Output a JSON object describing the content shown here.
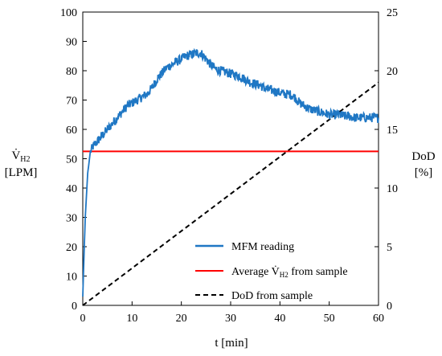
{
  "chart_data": {
    "type": "line",
    "xlabel": "t [min]",
    "ylabel_left": {
      "symbol": "V̇",
      "subscript": "H2",
      "unit": "[LPM]"
    },
    "ylabel_right": {
      "name": "DoD",
      "unit": "[%]"
    },
    "xlim": [
      0,
      60
    ],
    "ylim_left": [
      0,
      100
    ],
    "ylim_right": [
      0,
      25
    ],
    "x_ticks": [
      "0",
      "10",
      "20",
      "30",
      "40",
      "50",
      "60"
    ],
    "y_left_ticks": [
      "0",
      "10",
      "20",
      "30",
      "40",
      "50",
      "60",
      "70",
      "80",
      "90",
      "100"
    ],
    "y_right_ticks": [
      "0",
      "5",
      "10",
      "15",
      "20",
      "25"
    ],
    "grid": false,
    "legend_position": "bottom-right",
    "series": [
      {
        "name": "MFM reading",
        "axis": "left",
        "color": "#1f77c4",
        "style": "solid",
        "x": [
          0,
          0.5,
          1,
          1.5,
          2,
          3,
          4,
          5,
          6,
          7,
          8,
          9,
          10,
          11,
          12,
          13,
          14,
          15,
          16,
          17,
          18,
          19,
          20,
          21,
          22,
          23,
          24,
          25,
          26,
          27,
          28,
          29,
          30,
          31,
          32,
          33,
          34,
          35,
          36,
          37,
          38,
          39,
          40,
          41,
          42,
          43,
          44,
          45,
          46,
          47,
          48,
          49,
          50,
          51,
          52,
          53,
          54,
          55,
          56,
          57,
          58,
          59,
          60
        ],
        "values": [
          3,
          30,
          45,
          52,
          54,
          56,
          58,
          60,
          62,
          64,
          66,
          68,
          69,
          70,
          71,
          72,
          74,
          77,
          79,
          81,
          82,
          83,
          84,
          85,
          85.5,
          86,
          86,
          84,
          82,
          80.5,
          80,
          79.5,
          79,
          78.5,
          78,
          77,
          76,
          75.5,
          75,
          74,
          73.5,
          73,
          72.5,
          72,
          72,
          71,
          69,
          68,
          67,
          66.5,
          66,
          65.5,
          65,
          65,
          65,
          64.5,
          64.5,
          64,
          64,
          64,
          64,
          64,
          64
        ]
      },
      {
        "name": "Average V̇H2 from sample",
        "axis": "left",
        "color": "#ff0000",
        "style": "solid",
        "x": [
          0,
          60
        ],
        "values": [
          52.5,
          52.5
        ]
      },
      {
        "name": "DoD from sample",
        "axis": "right",
        "color": "#000000",
        "style": "dashed",
        "x": [
          0,
          60
        ],
        "values": [
          0,
          19
        ]
      }
    ],
    "legend": [
      {
        "label": "MFM reading",
        "color": "#1f77c4",
        "style": "solid"
      },
      {
        "label_prefix": "Average ",
        "symbol": "V̇",
        "subscript": "H2",
        "label_suffix": " from sample",
        "color": "#ff0000",
        "style": "solid"
      },
      {
        "label": "DoD from sample",
        "color": "#000000",
        "style": "dashed"
      }
    ]
  }
}
